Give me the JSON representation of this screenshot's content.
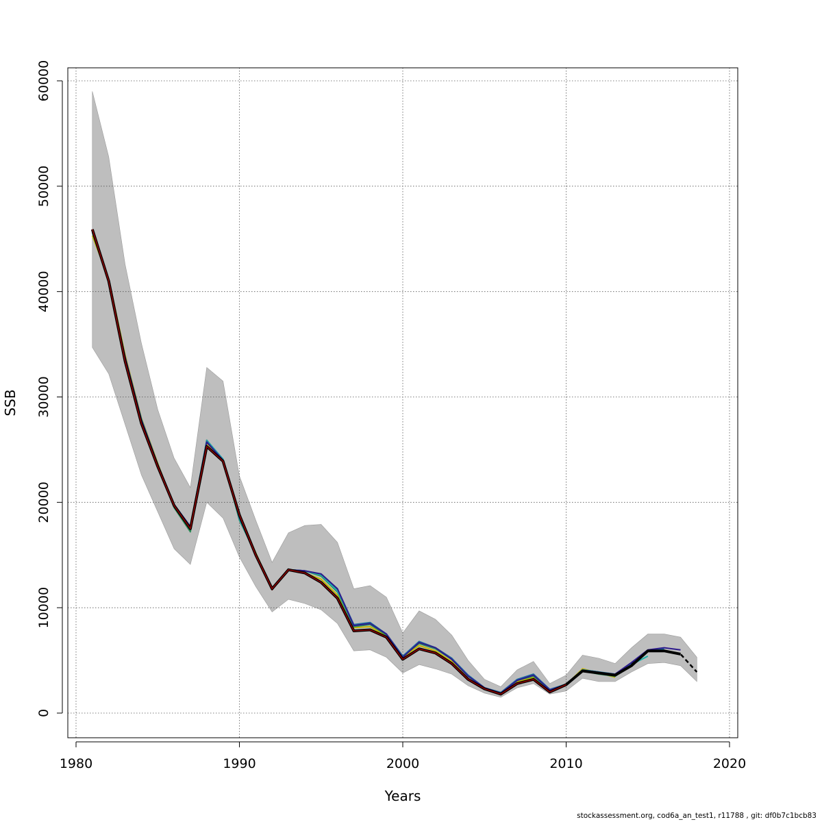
{
  "chart_data": {
    "type": "line",
    "xlabel": "Years",
    "ylabel": "SSB",
    "xlim": [
      1980,
      2020
    ],
    "ylim": [
      0,
      60000
    ],
    "x_ticks": [
      1980,
      1990,
      2000,
      2010,
      2020
    ],
    "y_ticks": [
      0,
      10000,
      20000,
      30000,
      40000,
      50000,
      60000
    ],
    "grid": true,
    "colors": {
      "band": "#bebebe",
      "grid": "#555555",
      "final": "#000000",
      "series": [
        "#8b0000",
        "#c8b400",
        "#2e8b57",
        "#20b2aa",
        "#1e6ea0",
        "#2d1a8c"
      ]
    },
    "confidence_band": {
      "x": [
        1981,
        1982,
        1983,
        1984,
        1985,
        1986,
        1987,
        1988,
        1989,
        1990,
        1991,
        1992,
        1993,
        1994,
        1995,
        1996,
        1997,
        1998,
        1999,
        2000,
        2001,
        2002,
        2003,
        2004,
        2005,
        2006,
        2007,
        2008,
        2009,
        2010,
        2011,
        2012,
        2013,
        2014,
        2015,
        2016,
        2017,
        2018
      ],
      "lower": [
        34700,
        32200,
        27400,
        22600,
        19100,
        15600,
        14100,
        20000,
        18500,
        14800,
        12000,
        9600,
        10800,
        10400,
        9800,
        8500,
        5900,
        6000,
        5300,
        3800,
        4600,
        4200,
        3700,
        2600,
        1900,
        1500,
        2400,
        2800,
        1800,
        2100,
        3300,
        3000,
        3000,
        3900,
        4700,
        4800,
        4500,
        3000
      ],
      "upper": [
        59000,
        52800,
        42600,
        35100,
        28800,
        24200,
        21400,
        32800,
        31500,
        22500,
        18300,
        14300,
        17100,
        17800,
        17900,
        16200,
        11800,
        12100,
        11000,
        7600,
        9700,
        8900,
        7400,
        5000,
        3200,
        2500,
        4100,
        4900,
        2800,
        3600,
        5500,
        5200,
        4700,
        6200,
        7500,
        7500,
        7200,
        5300
      ]
    },
    "series": [
      {
        "x": [
          1981,
          1982,
          1983,
          1984,
          1985,
          1986,
          1987,
          1988,
          1989,
          1990,
          1991,
          1992,
          1993,
          1994,
          1995,
          1996,
          1997,
          1998,
          1999,
          2000,
          2001,
          2002,
          2003,
          2004,
          2005,
          2006,
          2007,
          2008,
          2009,
          2010,
          2011,
          2012
        ],
        "values": [
          45900,
          41000,
          33500,
          27600,
          23400,
          19700,
          17500,
          25900,
          24000,
          18500,
          15000,
          11700,
          13600,
          13500,
          13100,
          11700,
          8300,
          8500,
          7500,
          5400,
          6700,
          6200,
          5200,
          3500,
          2400,
          1900,
          3100,
          3600,
          2200,
          2700,
          4100,
          3900
        ]
      },
      {
        "x": [
          1981,
          1982,
          1983,
          1984,
          1985,
          1986,
          1987,
          1988,
          1989,
          1990,
          1991,
          1992,
          1993,
          1994,
          1995,
          1996,
          1997,
          1998,
          1999,
          2000,
          2001,
          2002,
          2003,
          2004,
          2005,
          2006,
          2007,
          2008,
          2009,
          2010,
          2011,
          2012,
          2013
        ],
        "values": [
          45300,
          41200,
          34000,
          28000,
          23700,
          19600,
          17300,
          25600,
          24000,
          18700,
          15200,
          11800,
          13600,
          13300,
          12700,
          11200,
          8100,
          8200,
          7300,
          5300,
          6400,
          5900,
          4900,
          3300,
          2300,
          1850,
          3000,
          3400,
          2150,
          2700,
          4200,
          3800,
          3400
        ]
      },
      {
        "x": [
          1981,
          1982,
          1983,
          1984,
          1985,
          1986,
          1987,
          1988,
          1989,
          1990,
          1991,
          1992,
          1993,
          1994,
          1995,
          1996,
          1997,
          1998,
          1999,
          2000,
          2001,
          2002,
          2003,
          2004,
          2005,
          2006,
          2007,
          2008,
          2009,
          2010,
          2011,
          2012,
          2013,
          2014
        ],
        "values": [
          45600,
          41000,
          33700,
          27800,
          23500,
          19500,
          17200,
          25800,
          24100,
          18300,
          15100,
          11800,
          13600,
          13500,
          13000,
          11500,
          8200,
          8400,
          7400,
          5400,
          6600,
          6100,
          5100,
          3500,
          2400,
          1900,
          3100,
          3500,
          2200,
          2700,
          4000,
          3700,
          3500,
          4500
        ]
      },
      {
        "x": [
          1981,
          1982,
          1983,
          1984,
          1985,
          1986,
          1987,
          1988,
          1989,
          1990,
          1991,
          1992,
          1993,
          1994,
          1995,
          1996,
          1997,
          1998,
          1999,
          2000,
          2001,
          2002,
          2003,
          2004,
          2005,
          2006,
          2007,
          2008,
          2009,
          2010,
          2011,
          2012,
          2013,
          2014,
          2015
        ],
        "values": [
          45700,
          41000,
          33800,
          27900,
          23600,
          19700,
          17600,
          25900,
          24100,
          18400,
          15000,
          11800,
          13600,
          13500,
          13100,
          11600,
          8300,
          8500,
          7500,
          5400,
          6700,
          6200,
          5200,
          3500,
          2400,
          1950,
          3100,
          3600,
          2200,
          2700,
          4100,
          3900,
          3600,
          4600,
          5400
        ]
      },
      {
        "x": [
          1981,
          1982,
          1983,
          1984,
          1985,
          1986,
          1987,
          1988,
          1989,
          1990,
          1991,
          1992,
          1993,
          1994,
          1995,
          1996,
          1997,
          1998,
          1999,
          2000,
          2001,
          2002,
          2003,
          2004,
          2005,
          2006,
          2007,
          2008,
          2009,
          2010,
          2011,
          2012,
          2013,
          2014,
          2015,
          2016
        ],
        "values": [
          45700,
          41000,
          33800,
          27900,
          23600,
          19800,
          17700,
          25800,
          24000,
          18500,
          15000,
          11800,
          13600,
          13500,
          13200,
          11800,
          8400,
          8600,
          7500,
          5400,
          6800,
          6200,
          5200,
          3600,
          2400,
          1950,
          3200,
          3700,
          2250,
          2750,
          4100,
          3900,
          3700,
          4700,
          5900,
          6100
        ]
      },
      {
        "x": [
          1981,
          1982,
          1983,
          1984,
          1985,
          1986,
          1987,
          1988,
          1989,
          1990,
          1991,
          1992,
          1993,
          1994,
          1995,
          1996,
          1997,
          1998,
          1999,
          2000,
          2001,
          2002,
          2003,
          2004,
          2005,
          2006,
          2007,
          2008,
          2009,
          2010,
          2011,
          2012,
          2013,
          2014,
          2015,
          2016,
          2017
        ],
        "values": [
          45700,
          41000,
          33800,
          27800,
          23600,
          19800,
          17700,
          25700,
          24000,
          18600,
          15000,
          11800,
          13600,
          13500,
          13200,
          11800,
          8300,
          8500,
          7500,
          5300,
          6700,
          6200,
          5100,
          3500,
          2400,
          1900,
          3100,
          3600,
          2200,
          2700,
          4000,
          3800,
          3700,
          4800,
          6000,
          6200,
          6000
        ]
      }
    ],
    "final_series": {
      "x": [
        1981,
        1982,
        1983,
        1984,
        1985,
        1986,
        1987,
        1988,
        1989,
        1990,
        1991,
        1992,
        1993,
        1994,
        1995,
        1996,
        1997,
        1998,
        1999,
        2000,
        2001,
        2002,
        2003,
        2004,
        2005,
        2006,
        2007,
        2008,
        2009,
        2010,
        2011,
        2012,
        2013,
        2014,
        2015,
        2016,
        2017
      ],
      "values": [
        45900,
        41000,
        33400,
        27500,
        23400,
        19700,
        17500,
        25300,
        23900,
        18800,
        15000,
        11800,
        13600,
        13300,
        12400,
        10900,
        7800,
        7900,
        7200,
        5100,
        6100,
        5700,
        4700,
        3200,
        2300,
        1800,
        2800,
        3200,
        2000,
        2700,
        4000,
        3800,
        3600,
        4500,
        5900,
        5900,
        5600
      ],
      "dashed_x": [
        2014,
        2015,
        2016,
        2017,
        2018
      ],
      "dashed_values": [
        4600,
        5900,
        5900,
        5600,
        3900
      ]
    }
  },
  "footer": {
    "text": "stockassessment.org, cod6a_an_test1, r11788 , git: df0b7c1bcb83"
  }
}
